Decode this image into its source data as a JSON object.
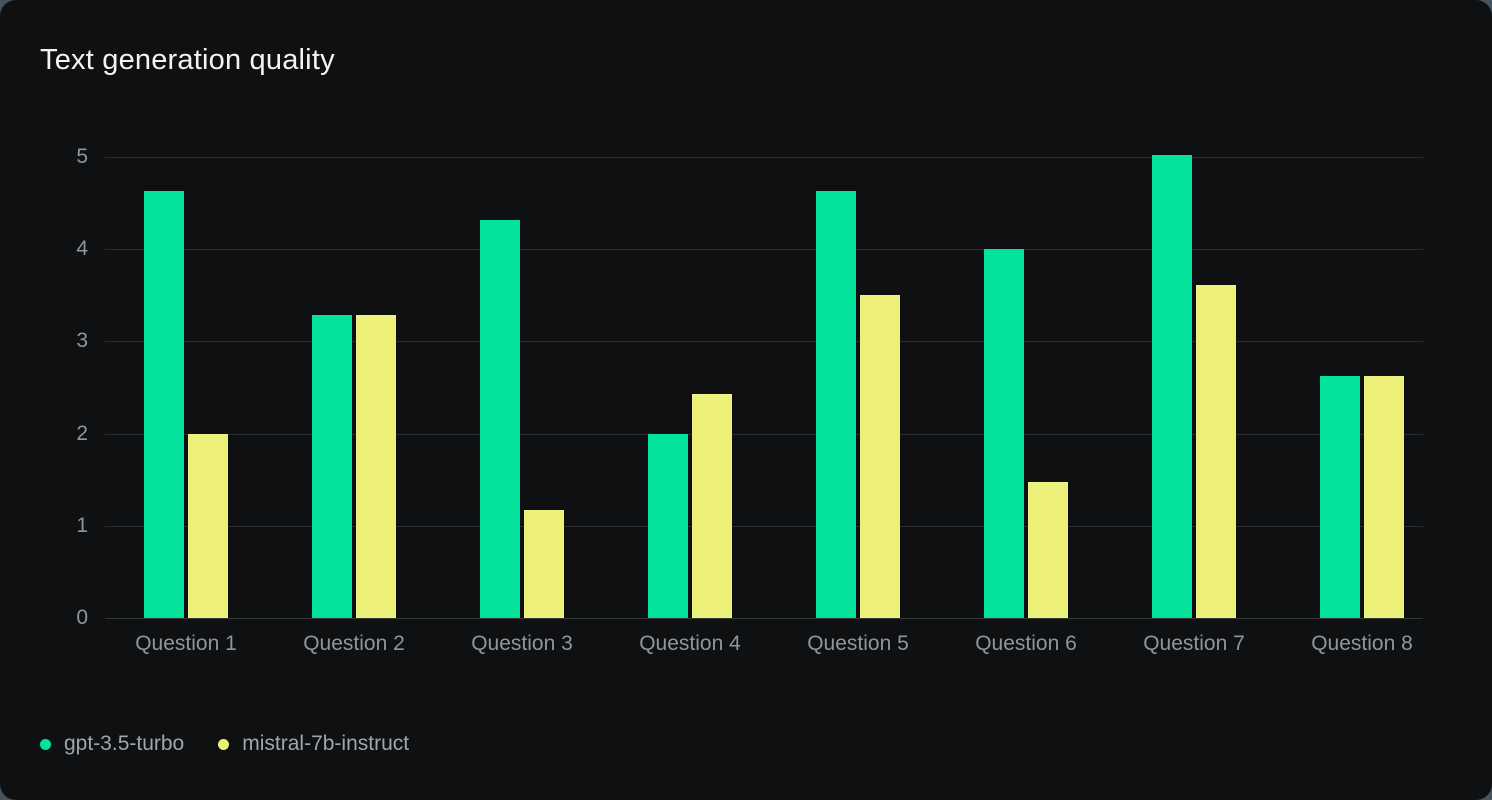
{
  "card": {
    "title": "Text generation quality"
  },
  "chart_data": {
    "type": "bar",
    "title": "Text generation quality",
    "categories": [
      "Question 1",
      "Question 2",
      "Question 3",
      "Question 4",
      "Question 5",
      "Question 6",
      "Question 7",
      "Question 8"
    ],
    "series": [
      {
        "name": "gpt-3.5-turbo",
        "color": "#02e29b",
        "values": [
          4.63,
          3.29,
          4.32,
          2.0,
          4.63,
          4.0,
          5.02,
          2.63
        ]
      },
      {
        "name": "mistral-7b-instruct",
        "color": "#edf17a",
        "values": [
          2.0,
          3.29,
          1.17,
          2.43,
          3.5,
          1.48,
          3.61,
          2.63
        ]
      }
    ],
    "xlabel": "",
    "ylabel": "",
    "y_ticks": [
      0,
      1,
      2,
      3,
      4,
      5
    ],
    "ylim": [
      0,
      5
    ],
    "grid": true,
    "legend_position": "bottom-left",
    "background_color": "#0f1011",
    "gridline_color": "#2a2d2f",
    "tick_label_color": "#8f969c",
    "title_color": "#f2f3f4"
  }
}
